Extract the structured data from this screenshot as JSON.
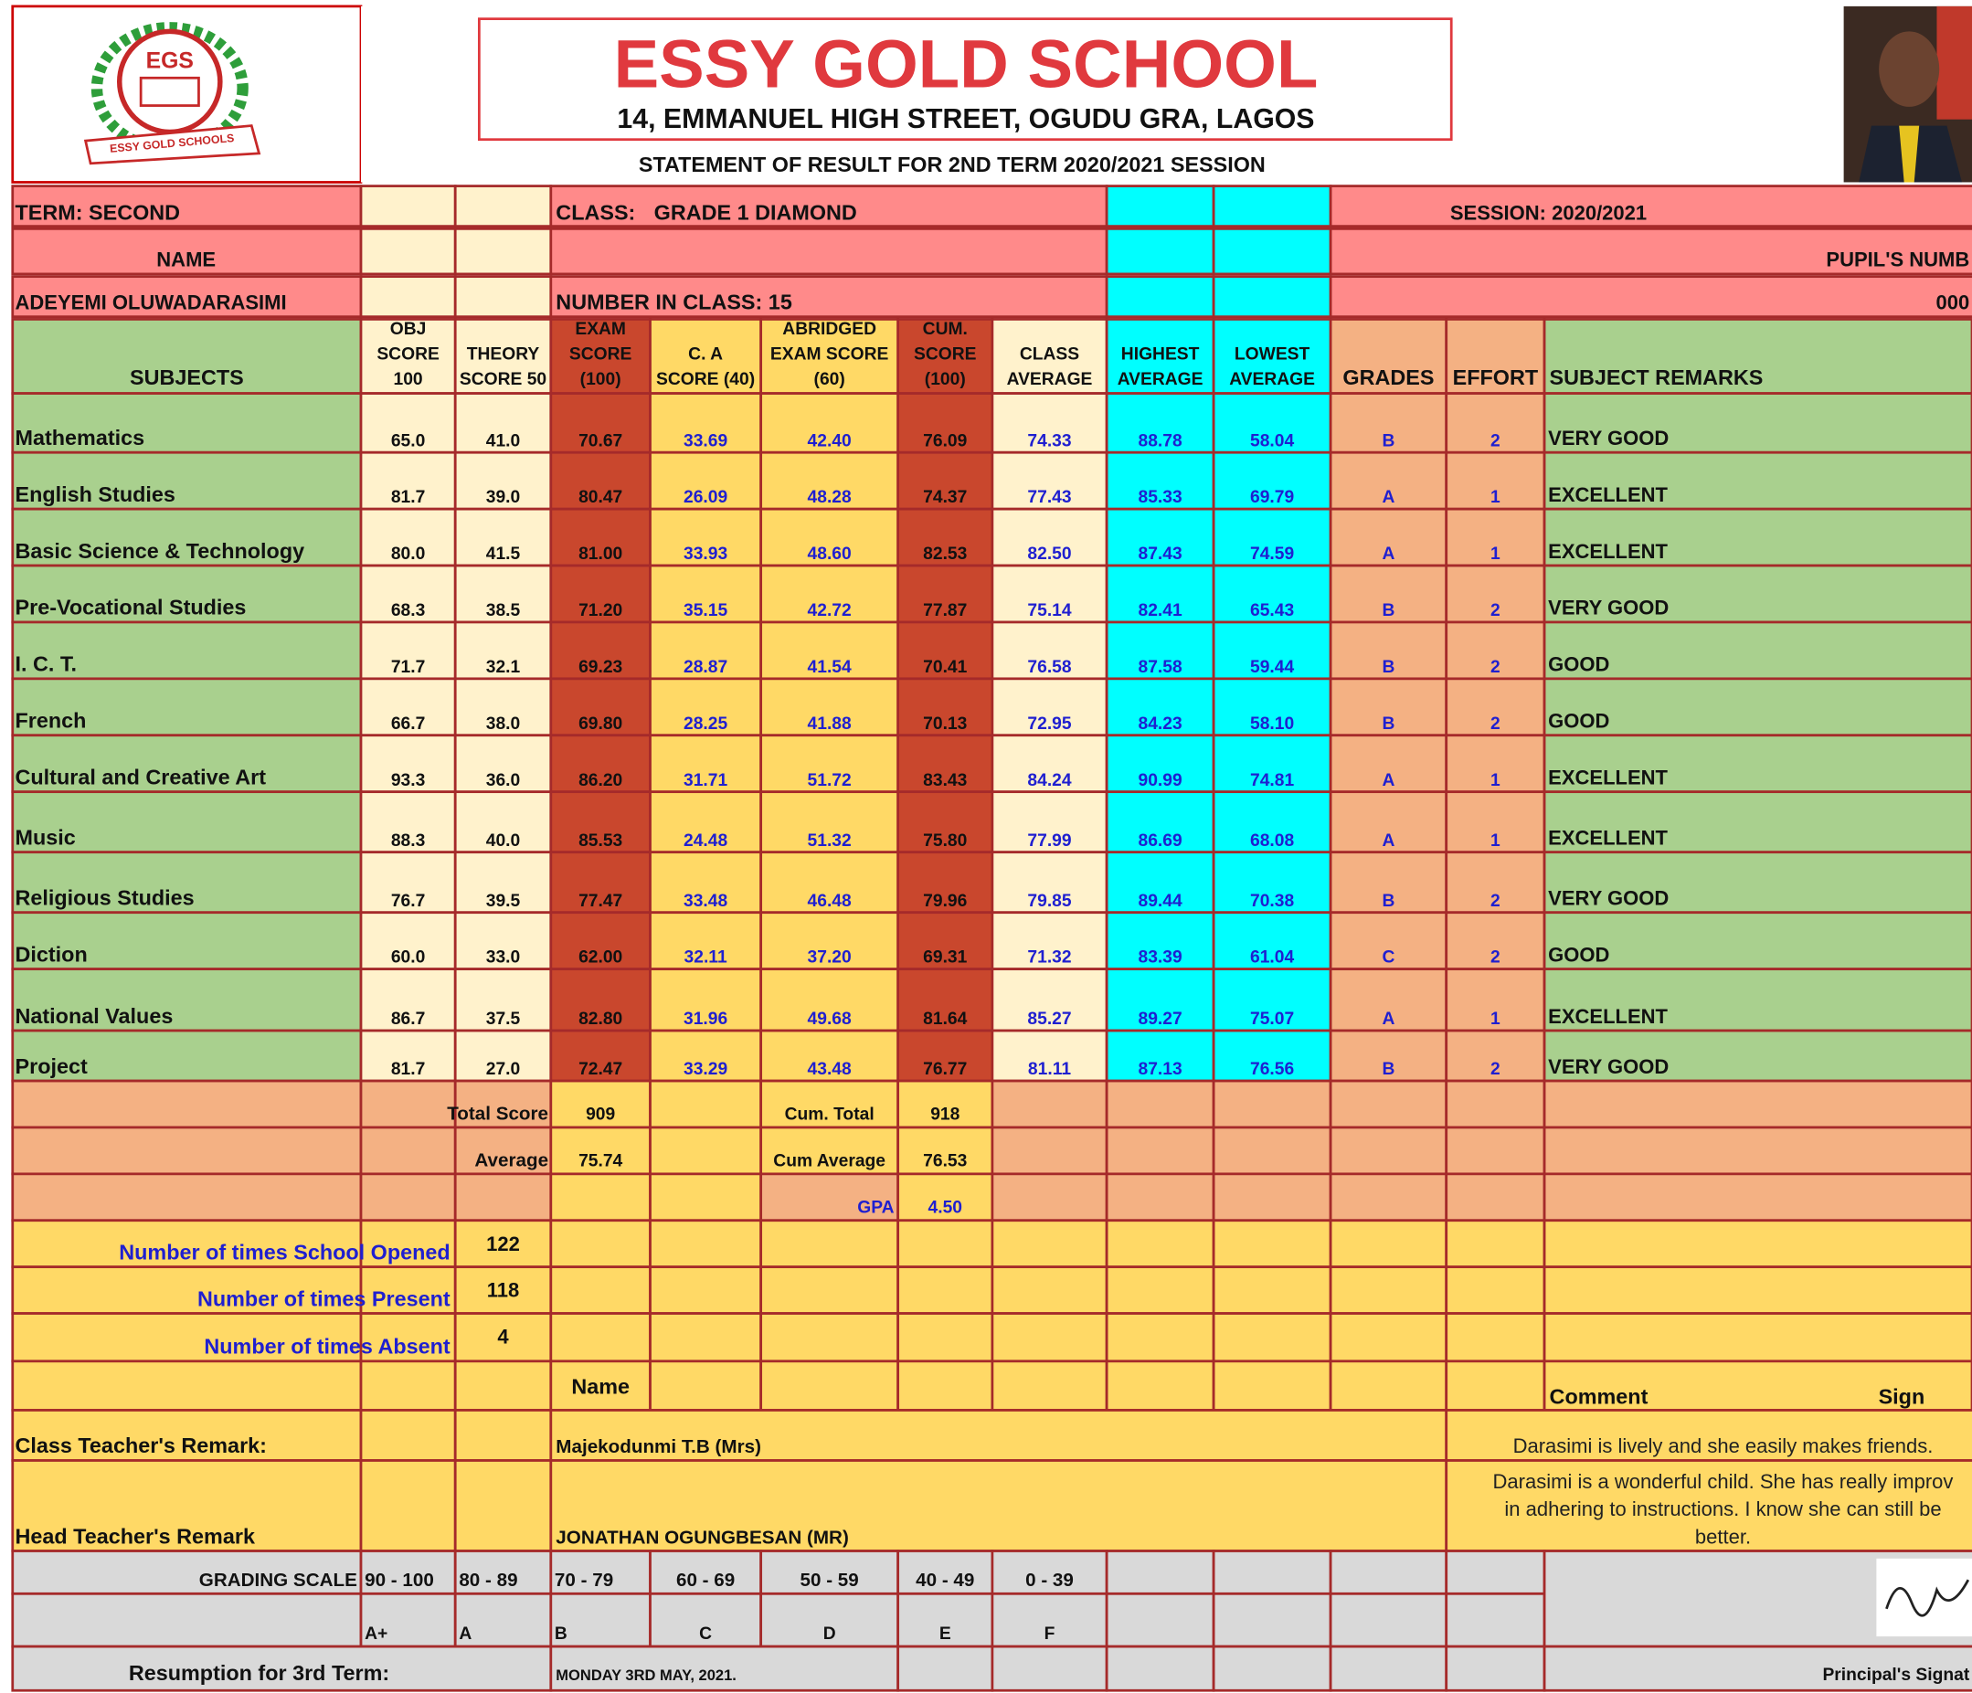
{
  "header": {
    "logo_text": "EGS",
    "logo_ribbon": "ESSY GOLD SCHOOLS",
    "school_name": "ESSY GOLD SCHOOL",
    "address": "14, EMMANUEL HIGH STREET, OGUDU GRA, LAGOS",
    "statement": "STATEMENT OF RESULT FOR 2ND TERM 2020/2021 SESSION"
  },
  "info": {
    "term": "TERM: SECOND",
    "class_label": "CLASS:",
    "class_value": "GRADE 1 DIAMOND",
    "session": "SESSION: 2020/2021",
    "name_label": "NAME",
    "pupil_number_label": "PUPIL'S NUMB",
    "pupil_name": "ADEYEMI OLUWADARASIMI",
    "number_in_class": "NUMBER IN CLASS: 15",
    "pupil_number": "000"
  },
  "table": {
    "columns": [
      [
        "SUBJECTS"
      ],
      [
        "OBJ",
        "SCORE",
        "100"
      ],
      [
        "THEORY",
        "SCORE 50"
      ],
      [
        "EXAM",
        "SCORE",
        "(100)"
      ],
      [
        "C. A",
        "SCORE (40)"
      ],
      [
        "ABRIDGED",
        "EXAM SCORE",
        "(60)"
      ],
      [
        "CUM.",
        "SCORE",
        "(100)"
      ],
      [
        "CLASS",
        "AVERAGE"
      ],
      [
        "HIGHEST",
        "AVERAGE"
      ],
      [
        "LOWEST",
        "AVERAGE"
      ],
      [
        "GRADES"
      ],
      [
        "EFFORT"
      ],
      [
        "SUBJECT REMARKS"
      ]
    ],
    "rows": [
      [
        "Mathematics",
        "65.0",
        "41.0",
        "70.67",
        "33.69",
        "42.40",
        "76.09",
        "74.33",
        "88.78",
        "58.04",
        "B",
        "2",
        "VERY GOOD"
      ],
      [
        "English Studies",
        "81.7",
        "39.0",
        "80.47",
        "26.09",
        "48.28",
        "74.37",
        "77.43",
        "85.33",
        "69.79",
        "A",
        "1",
        "EXCELLENT"
      ],
      [
        "Basic Science & Technology",
        "80.0",
        "41.5",
        "81.00",
        "33.93",
        "48.60",
        "82.53",
        "82.50",
        "87.43",
        "74.59",
        "A",
        "1",
        "EXCELLENT"
      ],
      [
        "Pre-Vocational Studies",
        "68.3",
        "38.5",
        "71.20",
        "35.15",
        "42.72",
        "77.87",
        "75.14",
        "82.41",
        "65.43",
        "B",
        "2",
        "VERY GOOD"
      ],
      [
        "I. C. T.",
        "71.7",
        "32.1",
        "69.23",
        "28.87",
        "41.54",
        "70.41",
        "76.58",
        "87.58",
        "59.44",
        "B",
        "2",
        "GOOD"
      ],
      [
        "French",
        "66.7",
        "38.0",
        "69.80",
        "28.25",
        "41.88",
        "70.13",
        "72.95",
        "84.23",
        "58.10",
        "B",
        "2",
        "GOOD"
      ],
      [
        "Cultural and Creative Art",
        "93.3",
        "36.0",
        "86.20",
        "31.71",
        "51.72",
        "83.43",
        "84.24",
        "90.99",
        "74.81",
        "A",
        "1",
        "EXCELLENT"
      ],
      [
        "Music",
        "88.3",
        "40.0",
        "85.53",
        "24.48",
        "51.32",
        "75.80",
        "77.99",
        "86.69",
        "68.08",
        "A",
        "1",
        "EXCELLENT"
      ],
      [
        "Religious Studies",
        "76.7",
        "39.5",
        "77.47",
        "33.48",
        "46.48",
        "79.96",
        "79.85",
        "89.44",
        "70.38",
        "B",
        "2",
        "VERY GOOD"
      ],
      [
        "Diction",
        "60.0",
        "33.0",
        "62.00",
        "32.11",
        "37.20",
        "69.31",
        "71.32",
        "83.39",
        "61.04",
        "C",
        "2",
        "GOOD"
      ],
      [
        "National Values",
        "86.7",
        "37.5",
        "82.80",
        "31.96",
        "49.68",
        "81.64",
        "85.27",
        "89.27",
        "75.07",
        "A",
        "1",
        "EXCELLENT"
      ],
      [
        "Project",
        "81.7",
        "27.0",
        "72.47",
        "33.29",
        "43.48",
        "76.77",
        "81.11",
        "87.13",
        "76.56",
        "B",
        "2",
        "VERY GOOD"
      ]
    ]
  },
  "totals": {
    "total_score_label": "Total Score",
    "total_score": "909",
    "cum_total_label": "Cum. Total",
    "cum_total": "918",
    "average_label": "Average",
    "average": "75.74",
    "cum_average_label": "Cum Average",
    "cum_average": "76.53",
    "gpa_label": "GPA",
    "gpa": "4.50"
  },
  "attendance": [
    {
      "label": "Number of times School Opened",
      "value": "122"
    },
    {
      "label": "Number of times Present",
      "value": "118"
    },
    {
      "label": "Number of times Absent",
      "value": "4"
    }
  ],
  "remarks": {
    "name_header": "Name",
    "comment_header": "Comment",
    "sign_header": "Sign",
    "class_teacher": {
      "label": "Class Teacher's Remark:",
      "name": "Majekodunmi T.B (Mrs)",
      "comment": [
        "Darasimi is lively and she easily makes friends."
      ]
    },
    "head_teacher": {
      "label": "Head Teacher's Remark",
      "name": "JONATHAN OGUNGBESAN (MR)",
      "comment": [
        "Darasimi is a wonderful child. She has really improv",
        "in adhering to instructions. I know she can still be",
        "better."
      ]
    }
  },
  "grading": {
    "label": "GRADING SCALE",
    "ranges": [
      "90 - 100",
      "80 - 89",
      "70 - 79",
      "60 - 69",
      "50 - 59",
      "40 - 49",
      "0 - 39"
    ],
    "grades": [
      "A+",
      "A",
      "B",
      "C",
      "D",
      "E",
      "F"
    ]
  },
  "footer": {
    "resumption_label": "Resumption for 3rd Term:",
    "resumption_date": "MONDAY 3RD MAY, 2021.",
    "principal": "Principal's Signat"
  }
}
